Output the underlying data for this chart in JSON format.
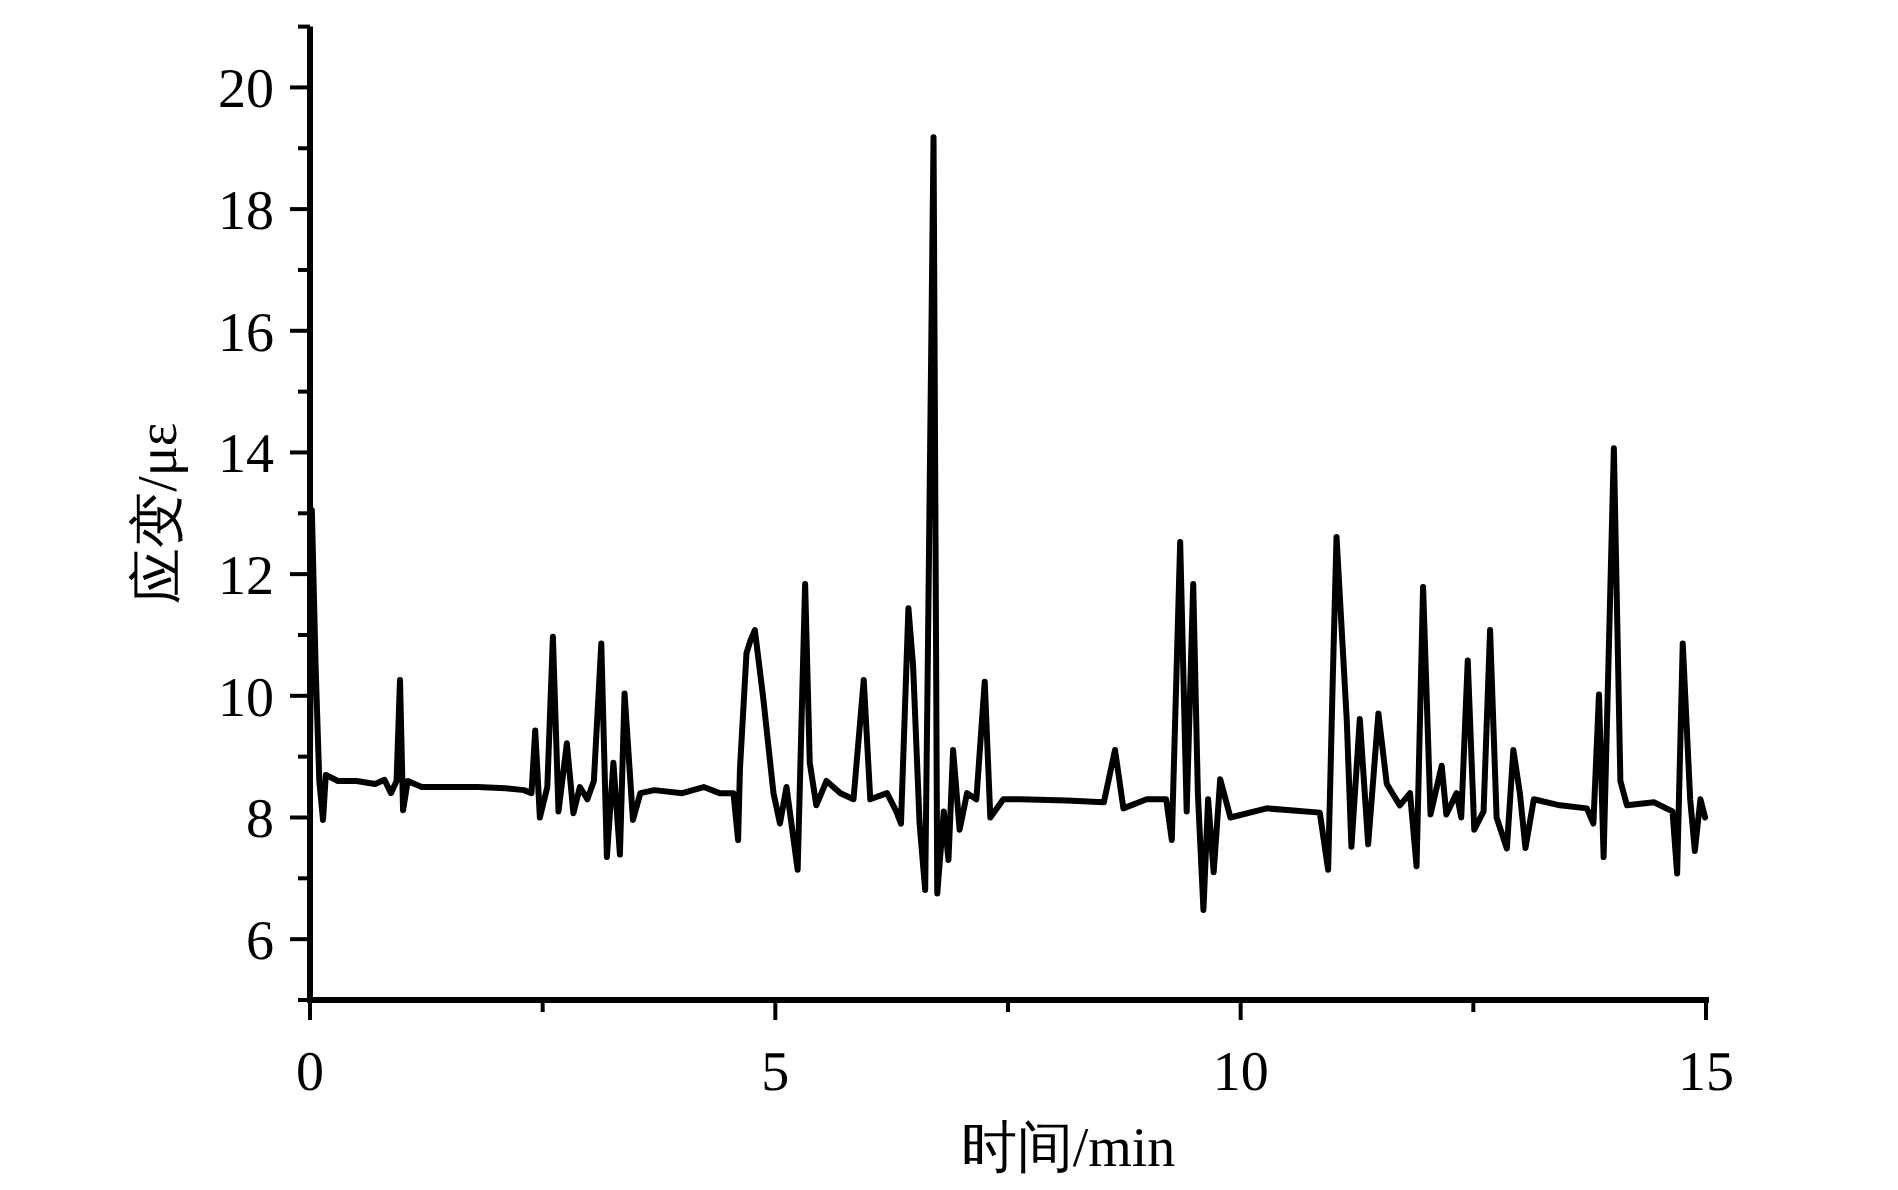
{
  "chart_data": {
    "type": "line",
    "xlabel": "时间/min",
    "ylabel": "应变/με",
    "x": [
      0,
      0.02,
      0.06,
      0.1,
      0.14,
      0.17,
      0.3,
      0.5,
      0.7,
      0.8,
      0.87,
      0.93,
      0.967,
      1.0,
      1.05,
      1.2,
      1.5,
      1.8,
      2.1,
      2.3,
      2.38,
      2.42,
      2.47,
      2.55,
      2.61,
      2.67,
      2.76,
      2.83,
      2.9,
      2.98,
      3.05,
      3.13,
      3.19,
      3.26,
      3.33,
      3.38,
      3.47,
      3.55,
      3.7,
      4.0,
      4.23,
      4.4,
      4.55,
      4.6,
      4.62,
      4.69,
      4.73,
      4.78,
      4.87,
      4.98,
      5.05,
      5.12,
      5.24,
      5.32,
      5.37,
      5.44,
      5.55,
      5.7,
      5.84,
      5.95,
      6.02,
      6.2,
      6.3,
      6.35,
      6.43,
      6.48,
      6.55,
      6.61,
      6.64,
      6.7,
      6.74,
      6.81,
      6.86,
      6.91,
      6.98,
      7.06,
      7.16,
      7.25,
      7.31,
      7.45,
      7.63,
      8.13,
      8.53,
      8.65,
      8.74,
      8.99,
      9.2,
      9.26,
      9.35,
      9.42,
      9.49,
      9.54,
      9.6,
      9.65,
      9.71,
      9.78,
      9.89,
      10.28,
      10.85,
      10.94,
      10.99,
      11.03,
      11.14,
      11.19,
      11.28,
      11.37,
      11.48,
      11.57,
      11.71,
      11.82,
      11.89,
      11.96,
      12.04,
      12.16,
      12.21,
      12.32,
      12.37,
      12.44,
      12.51,
      12.61,
      12.68,
      12.75,
      12.86,
      12.93,
      13.0,
      13.06,
      13.15,
      13.43,
      13.72,
      13.79,
      13.85,
      13.9,
      14.01,
      14.08,
      14.15,
      14.44,
      14.64,
      14.69,
      14.75,
      14.83,
      14.88,
      14.94,
      14.99
    ],
    "series": [
      {
        "color": "#000000",
        "values": [
          9.0,
          13.05,
          10.5,
          8.6,
          7.96,
          8.7,
          8.6,
          8.6,
          8.55,
          8.62,
          8.4,
          8.6,
          10.26,
          8.12,
          8.6,
          8.5,
          8.5,
          8.5,
          8.48,
          8.45,
          8.4,
          9.43,
          8.0,
          8.5,
          10.97,
          8.1,
          9.22,
          8.07,
          8.5,
          8.3,
          8.6,
          10.86,
          7.35,
          8.9,
          7.39,
          10.04,
          7.96,
          8.4,
          8.45,
          8.4,
          8.5,
          8.4,
          8.4,
          7.63,
          8.8,
          10.7,
          10.9,
          11.08,
          9.96,
          8.4,
          7.9,
          8.5,
          7.14,
          11.84,
          8.9,
          8.2,
          8.6,
          8.4,
          8.3,
          10.26,
          8.3,
          8.4,
          8.1,
          7.9,
          11.44,
          10.5,
          7.9,
          6.81,
          10.8,
          19.18,
          6.75,
          8.1,
          7.3,
          9.11,
          7.8,
          8.4,
          8.3,
          10.23,
          8.0,
          8.3,
          8.3,
          8.28,
          8.25,
          9.11,
          8.15,
          8.3,
          8.3,
          7.63,
          12.53,
          8.1,
          11.84,
          8.4,
          6.48,
          8.3,
          7.1,
          8.63,
          8.0,
          8.15,
          8.08,
          7.14,
          10.3,
          12.61,
          9.6,
          7.52,
          9.62,
          7.56,
          9.71,
          8.55,
          8.2,
          8.4,
          7.2,
          11.79,
          8.05,
          8.85,
          8.05,
          8.4,
          8.0,
          10.58,
          7.8,
          8.1,
          11.08,
          8.0,
          7.49,
          9.11,
          8.4,
          7.5,
          8.3,
          8.2,
          8.15,
          7.9,
          10.02,
          7.35,
          14.07,
          8.6,
          8.2,
          8.25,
          8.1,
          7.08,
          10.86,
          8.3,
          7.45,
          8.3,
          8.0
        ]
      }
    ],
    "xlim": [
      0,
      15
    ],
    "ylim": [
      5,
      21
    ],
    "xticks": [
      0,
      5,
      10,
      15
    ],
    "yticks": [
      6,
      8,
      10,
      12,
      14,
      16,
      18,
      20
    ],
    "marker": "none",
    "line_style": "solid"
  }
}
